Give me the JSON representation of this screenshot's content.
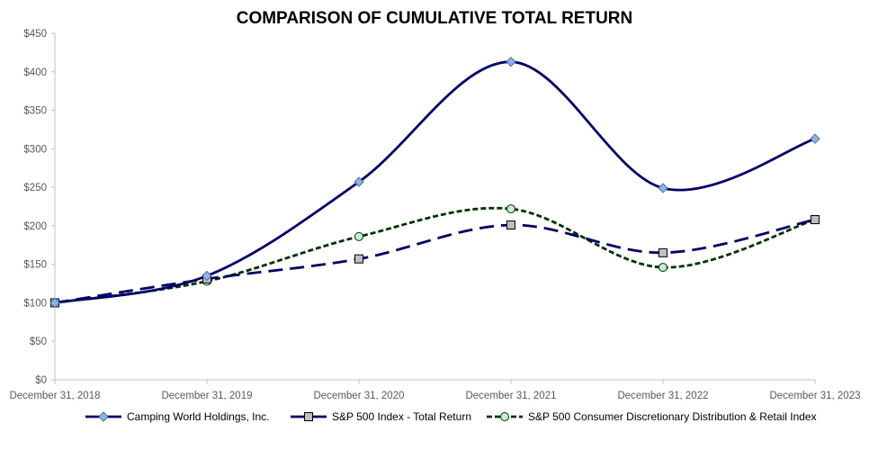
{
  "chart_data": {
    "type": "line",
    "title": "COMPARISON OF CUMULATIVE TOTAL RETURN",
    "xlabel": "",
    "ylabel": "",
    "categories": [
      "December 31, 2018",
      "December 31, 2019",
      "December 31, 2020",
      "December 31, 2021",
      "December 31, 2022",
      "December 31, 2023"
    ],
    "ylim": [
      0,
      450
    ],
    "yticks": [
      0,
      50,
      100,
      150,
      200,
      250,
      300,
      350,
      400,
      450
    ],
    "ytick_labels": [
      "$0",
      "$50",
      "$100",
      "$150",
      "$200",
      "$250",
      "$300",
      "$350",
      "$400",
      "$450"
    ],
    "grid": false,
    "legend_position": "bottom",
    "series": [
      {
        "name": "Camping World Holdings, Inc.",
        "values": [
          100,
          135,
          257,
          413,
          249,
          313
        ],
        "color": "#000066",
        "dash": "solid",
        "marker": "diamond",
        "marker_fill": "#8db4e2"
      },
      {
        "name": "S&P 500 Index - Total Return",
        "values": [
          100,
          131,
          157,
          201,
          165,
          208
        ],
        "color": "#000066",
        "dash": "long-dash",
        "marker": "square",
        "marker_fill": "#bfbfbf"
      },
      {
        "name": "S&P 500 Consumer Discretionary Distribution & Retail Index",
        "values": [
          100,
          128,
          186,
          222,
          146,
          208
        ],
        "color": "#003300",
        "dash": "short-dash",
        "marker": "circle",
        "marker_fill": "#c6efce"
      }
    ]
  }
}
